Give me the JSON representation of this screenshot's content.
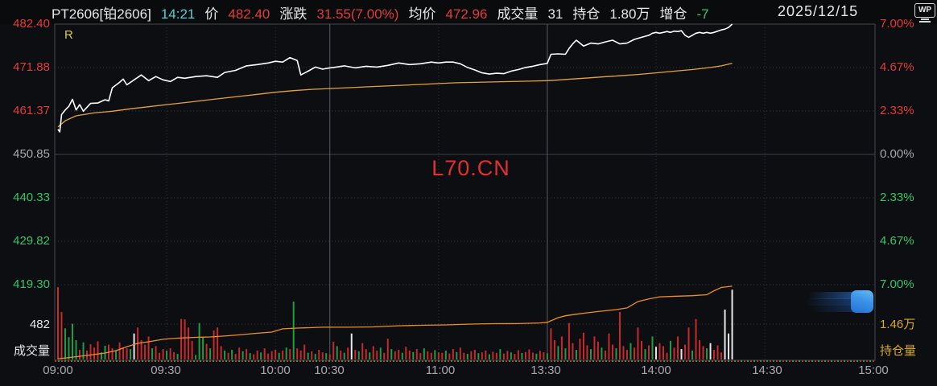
{
  "palette": {
    "red": "#e23b3b",
    "green": "#27a85a",
    "bright_green": "#35c46a",
    "cyan": "#4fd1d9",
    "yellow": "#d8a92c",
    "white_line": "#ffffff",
    "avg_line": "#e5a33c",
    "oi_line": "#ef8f23",
    "vol_red": "#c8292b",
    "vol_green": "#1d9e44",
    "vol_white": "#e8e8e8",
    "grid": "#34343e",
    "divider": "#5a5a64",
    "border": "#484850"
  },
  "header": {
    "contract": "PT2606[铂2606]",
    "time": "14:21",
    "price_label": "价",
    "price": "482.40",
    "change_label": "涨跌",
    "change": "31.55(7.00%)",
    "avg_label": "均价",
    "avg": "472.96",
    "vol_label": "成交量",
    "vol": "31",
    "oi_label": "持仓",
    "oi": "1.80万",
    "oi_chg_label": "增仓",
    "oi_chg": "-7",
    "date": "2025/12/15",
    "wp": "WP"
  },
  "watermark": "L70.CN",
  "r_flag": "R",
  "axes": {
    "left": [
      {
        "t": "482.40"
      },
      {
        "t": "471.88"
      },
      {
        "t": "461.37"
      },
      {
        "t": "450.85"
      },
      {
        "t": "440.33"
      },
      {
        "t": "429.82"
      },
      {
        "t": "419.30"
      },
      {
        "t": "482"
      },
      {
        "t": "成交量"
      }
    ],
    "right": [
      {
        "t": "7.00%"
      },
      {
        "t": "4.67%"
      },
      {
        "t": "2.33%"
      },
      {
        "t": "0.00%"
      },
      {
        "t": "2.33%"
      },
      {
        "t": "4.67%"
      },
      {
        "t": "7.00%"
      },
      {
        "t": "1.46万"
      },
      {
        "t": "持仓量"
      }
    ],
    "time": [
      {
        "t": "09:00"
      },
      {
        "t": "09:30"
      },
      {
        "t": "10:00"
      },
      {
        "t": "10:30"
      },
      {
        "t": "11:00"
      },
      {
        "t": "13:30"
      },
      {
        "t": "14:00"
      },
      {
        "t": "14:30"
      },
      {
        "t": "15:00"
      }
    ]
  },
  "chart_data": {
    "type": "line",
    "title": "PT2606 platinum futures intraday (minute) chart",
    "sessions": "09:00-10:15, 10:30-11:30, 13:30-15:00",
    "x_unit": "trading minute index from 09:00 open (0..225), data ends 14:21 = minute 186",
    "prev_close": 450.85,
    "limit_up": 482.4,
    "limit_down": 419.3,
    "y_left_ticks": [
      482.4,
      471.88,
      461.37,
      450.85,
      440.33,
      429.82,
      419.3
    ],
    "y_right_ticks_pct": [
      7.0,
      4.67,
      2.33,
      0.0,
      -2.33,
      -4.67,
      -7.0
    ],
    "grid_minutes_dotted": [
      30,
      60,
      105,
      165,
      195
    ],
    "grid_minutes_solid": [
      75,
      135
    ],
    "price_points": [
      [
        0,
        456.9
      ],
      [
        0.5,
        456.3
      ],
      [
        1,
        460.5
      ],
      [
        2,
        461.6
      ],
      [
        3,
        462.5
      ],
      [
        4,
        464.2
      ],
      [
        5,
        461.6
      ],
      [
        6,
        462.9
      ],
      [
        7,
        461.3
      ],
      [
        9,
        463.2
      ],
      [
        11,
        463.3
      ],
      [
        13,
        464.1
      ],
      [
        14,
        463.8
      ],
      [
        15,
        467.0
      ],
      [
        17,
        468.3
      ],
      [
        18,
        469.1
      ],
      [
        19,
        467.7
      ],
      [
        21,
        468.9
      ],
      [
        23,
        470.1
      ],
      [
        25,
        468.7
      ],
      [
        27,
        469.7
      ],
      [
        29,
        468.9
      ],
      [
        31,
        468.5
      ],
      [
        33,
        469.5
      ],
      [
        35,
        469.3
      ],
      [
        38,
        469.7
      ],
      [
        41,
        469.9
      ],
      [
        44,
        469.5
      ],
      [
        46,
        470.7
      ],
      [
        49,
        471.2
      ],
      [
        52,
        472.3
      ],
      [
        55,
        472.6
      ],
      [
        58,
        473.0
      ],
      [
        60,
        473.4
      ],
      [
        62,
        473.2
      ],
      [
        64,
        474.3
      ],
      [
        66,
        473.6
      ],
      [
        67,
        470.1
      ],
      [
        69,
        471.0
      ],
      [
        71,
        472.0
      ],
      [
        73,
        471.5
      ],
      [
        75,
        471.8
      ],
      [
        76,
        471.9
      ],
      [
        79,
        472.3
      ],
      [
        82,
        471.8
      ],
      [
        85,
        472.2
      ],
      [
        88,
        472.0
      ],
      [
        91,
        472.4
      ],
      [
        94,
        473.0
      ],
      [
        97,
        472.6
      ],
      [
        100,
        472.8
      ],
      [
        103,
        473.2
      ],
      [
        105,
        473.0
      ],
      [
        107,
        473.2
      ],
      [
        109,
        473.2
      ],
      [
        111,
        472.8
      ],
      [
        113,
        471.9
      ],
      [
        115,
        471.3
      ],
      [
        117,
        470.6
      ],
      [
        119,
        470.3
      ],
      [
        121,
        470.5
      ],
      [
        123,
        470.4
      ],
      [
        125,
        471.0
      ],
      [
        127,
        471.4
      ],
      [
        129,
        471.9
      ],
      [
        131,
        472.2
      ],
      [
        133,
        472.6
      ],
      [
        135,
        472.9
      ],
      [
        136,
        475.1
      ],
      [
        138,
        475.2
      ],
      [
        140,
        475.1
      ],
      [
        141,
        476.5
      ],
      [
        142,
        477.6
      ],
      [
        143,
        478.5
      ],
      [
        144,
        477.8
      ],
      [
        145,
        477.1
      ],
      [
        147,
        477.8
      ],
      [
        149,
        477.6
      ],
      [
        151,
        478.1
      ],
      [
        153,
        478.5
      ],
      [
        155,
        477.6
      ],
      [
        157,
        477.8
      ],
      [
        159,
        478.7
      ],
      [
        161,
        479.2
      ],
      [
        163,
        479.7
      ],
      [
        164,
        480.2
      ],
      [
        165,
        480.4
      ],
      [
        166,
        480.2
      ],
      [
        167,
        480.4
      ],
      [
        168,
        480.6
      ],
      [
        169,
        480.4
      ],
      [
        170,
        480.7
      ],
      [
        171,
        480.6
      ],
      [
        172,
        480.8
      ],
      [
        173,
        479.7
      ],
      [
        174,
        479.2
      ],
      [
        175,
        479.7
      ],
      [
        176,
        480.2
      ],
      [
        177,
        480.4
      ],
      [
        178,
        480.2
      ],
      [
        179,
        480.4
      ],
      [
        180,
        480.2
      ],
      [
        181,
        480.4
      ],
      [
        182,
        480.7
      ],
      [
        183,
        481.0
      ],
      [
        184,
        481.2
      ],
      [
        185,
        481.6
      ],
      [
        186,
        482.4
      ]
    ],
    "avg_points": [
      [
        0,
        457.5
      ],
      [
        2,
        459.0
      ],
      [
        5,
        460.2
      ],
      [
        10,
        460.9
      ],
      [
        15,
        461.3
      ],
      [
        20,
        461.9
      ],
      [
        25,
        462.4
      ],
      [
        30,
        462.9
      ],
      [
        35,
        463.4
      ],
      [
        40,
        463.9
      ],
      [
        45,
        464.4
      ],
      [
        50,
        464.9
      ],
      [
        55,
        465.4
      ],
      [
        60,
        465.9
      ],
      [
        65,
        466.3
      ],
      [
        70,
        466.6
      ],
      [
        75,
        466.8
      ],
      [
        80,
        467.0
      ],
      [
        85,
        467.2
      ],
      [
        90,
        467.4
      ],
      [
        95,
        467.6
      ],
      [
        100,
        467.8
      ],
      [
        105,
        468.0
      ],
      [
        110,
        468.2
      ],
      [
        115,
        468.3
      ],
      [
        120,
        468.4
      ],
      [
        125,
        468.5
      ],
      [
        130,
        468.6
      ],
      [
        135,
        468.7
      ],
      [
        137,
        468.8
      ],
      [
        140,
        469.0
      ],
      [
        145,
        469.3
      ],
      [
        150,
        469.6
      ],
      [
        155,
        469.9
      ],
      [
        160,
        470.2
      ],
      [
        165,
        470.6
      ],
      [
        170,
        471.0
      ],
      [
        175,
        471.4
      ],
      [
        180,
        471.9
      ],
      [
        183,
        472.3
      ],
      [
        186,
        472.9
      ]
    ],
    "volume": {
      "scale_value": 482,
      "values": [
        975,
        640,
        420,
        300,
        480,
        260,
        130,
        230,
        120,
        205,
        160,
        245,
        95,
        185,
        200,
        150,
        120,
        230,
        160,
        150,
        140,
        350,
        430,
        260,
        200,
        310,
        150,
        180,
        90,
        140,
        120,
        150,
        100,
        75,
        545,
        540,
        430,
        250,
        60,
        490,
        300,
        210,
        150,
        390,
        430,
        180,
        120,
        90,
        130,
        75,
        160,
        110,
        140,
        85,
        70,
        120,
        95,
        150,
        80,
        110,
        130,
        90,
        120,
        160,
        140,
        780,
        150,
        120,
        200,
        90,
        110,
        75,
        130,
        95,
        85,
        70,
        240,
        180,
        120,
        90,
        160,
        350,
        130,
        110,
        220,
        140,
        95,
        180,
        120,
        160,
        90,
        280,
        140,
        110,
        130,
        90,
        170,
        120,
        100,
        140,
        85,
        150,
        110,
        90,
        125,
        95,
        90,
        120,
        80,
        140,
        100,
        160,
        90,
        75,
        110,
        130,
        85,
        95,
        120,
        70,
        105,
        90,
        140,
        80,
        115,
        95,
        75,
        125,
        88,
        100,
        135,
        92,
        78,
        118,
        96,
        82,
        420,
        260,
        180,
        310,
        150,
        490,
        220,
        130,
        280,
        360,
        190,
        140,
        310,
        240,
        160,
        120,
        350,
        200,
        150,
        640,
        180,
        130,
        220,
        160,
        430,
        250,
        140,
        190,
        310,
        170,
        220,
        180,
        90,
        250,
        160,
        310,
        140,
        200,
        430,
        120,
        545,
        260,
        180,
        150,
        220,
        130,
        190,
        95,
        672,
        350,
        940
      ],
      "colors": "rrggggrgrrrrggrrgrrrgwrrrrgrrrgrrgrrrrgggrgrrrgrgrrgrgrrgrrrrgrgrgrrrgrgrrgrrgrgrwrgrrgrrgrrgrrgrrgrrgrrgrrgrrgrrgrrgrrgrrgrrgrrgrrrgrrgrrgrgrrgrrrgrrgrrrgrrrgrrrgrgwrrrgrrwrrgrrrgwrrr"
    },
    "open_interest": {
      "unit": "万",
      "scale_tick": 1.46,
      "last": 1.8,
      "points": [
        [
          0,
          1.135
        ],
        [
          4,
          1.15
        ],
        [
          8,
          1.165
        ],
        [
          13,
          1.188
        ],
        [
          16,
          1.21
        ],
        [
          19,
          1.247
        ],
        [
          22,
          1.277
        ],
        [
          25,
          1.292
        ],
        [
          29,
          1.315
        ],
        [
          33,
          1.326
        ],
        [
          38,
          1.333
        ],
        [
          42,
          1.337
        ],
        [
          47,
          1.348
        ],
        [
          51,
          1.359
        ],
        [
          55,
          1.371
        ],
        [
          59,
          1.382
        ],
        [
          62,
          1.412
        ],
        [
          66,
          1.419
        ],
        [
          73,
          1.427
        ],
        [
          80,
          1.427
        ],
        [
          87,
          1.43
        ],
        [
          94,
          1.441
        ],
        [
          100,
          1.445
        ],
        [
          107,
          1.449
        ],
        [
          114,
          1.456
        ],
        [
          120,
          1.46
        ],
        [
          127,
          1.461
        ],
        [
          133,
          1.467
        ],
        [
          135,
          1.473
        ],
        [
          138,
          1.516
        ],
        [
          140,
          1.533
        ],
        [
          143,
          1.548
        ],
        [
          146,
          1.561
        ],
        [
          149,
          1.573
        ],
        [
          154,
          1.591
        ],
        [
          157,
          1.606
        ],
        [
          160,
          1.665
        ],
        [
          163,
          1.69
        ],
        [
          166,
          1.709
        ],
        [
          171,
          1.715
        ],
        [
          175,
          1.72
        ],
        [
          179,
          1.729
        ],
        [
          181,
          1.765
        ],
        [
          183,
          1.796
        ],
        [
          186,
          1.808
        ]
      ]
    }
  }
}
